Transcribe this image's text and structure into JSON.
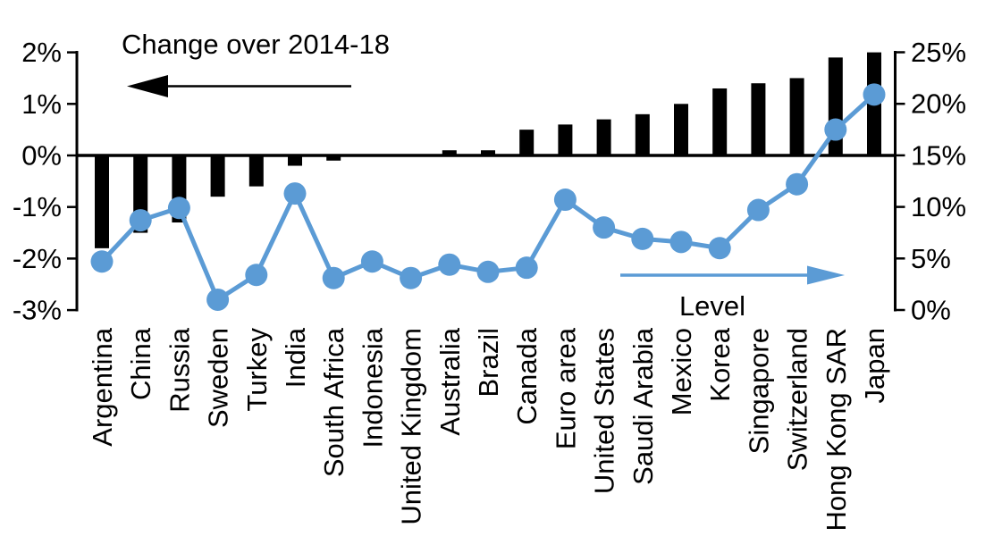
{
  "chart_data": {
    "type": "combo_bar_line",
    "title": "",
    "categories": [
      "Argentina",
      "China",
      "Russia",
      "Sweden",
      "Turkey",
      "India",
      "South Africa",
      "Indonesia",
      "United Kingdom",
      "Australia",
      "Brazil",
      "Canada",
      "Euro area",
      "United States",
      "Saudi Arabia",
      "Mexico",
      "Korea",
      "Singapore",
      "Switzerland",
      "Hong Kong SAR",
      "Japan"
    ],
    "series": [
      {
        "name": "Change over 2014-18",
        "type": "bar",
        "axis": "left",
        "color": "#000000",
        "values": [
          -1.8,
          -1.5,
          -1.3,
          -0.8,
          -0.6,
          -0.2,
          -0.1,
          0.0,
          0.0,
          0.1,
          0.1,
          0.5,
          0.6,
          0.7,
          0.8,
          1.0,
          1.3,
          1.4,
          1.5,
          1.9,
          2.0
        ]
      },
      {
        "name": "Level",
        "type": "line",
        "axis": "right",
        "color": "#5B9BD5",
        "values": [
          4.7,
          8.7,
          9.9,
          1.0,
          3.4,
          11.3,
          3.1,
          4.7,
          3.1,
          4.4,
          3.7,
          4.1,
          10.7,
          8.0,
          6.9,
          6.6,
          6.0,
          9.7,
          12.2,
          17.5,
          20.9
        ]
      }
    ],
    "left_axis": {
      "tick_labels": [
        "2%",
        "1%",
        "0%",
        "-1%",
        "-2%",
        "-3%"
      ],
      "tick_values": [
        2,
        1,
        0,
        -1,
        -2,
        -3
      ],
      "min": -3,
      "max": 2,
      "grid": false
    },
    "right_axis": {
      "tick_labels": [
        "25%",
        "20%",
        "15%",
        "10%",
        "5%",
        "0%"
      ],
      "tick_values": [
        25,
        20,
        15,
        10,
        5,
        0
      ],
      "min": 0,
      "max": 25,
      "grid": false
    },
    "annotations": {
      "bar_series_label": "Change over 2014-18",
      "bar_arrow_direction": "left",
      "line_series_label": "Level",
      "line_arrow_direction": "right"
    },
    "legend_position": "none"
  },
  "colors": {
    "bar": "#000000",
    "line": "#5B9BD5",
    "axis": "#000000",
    "text": "#000000",
    "background": "#FFFFFF"
  }
}
